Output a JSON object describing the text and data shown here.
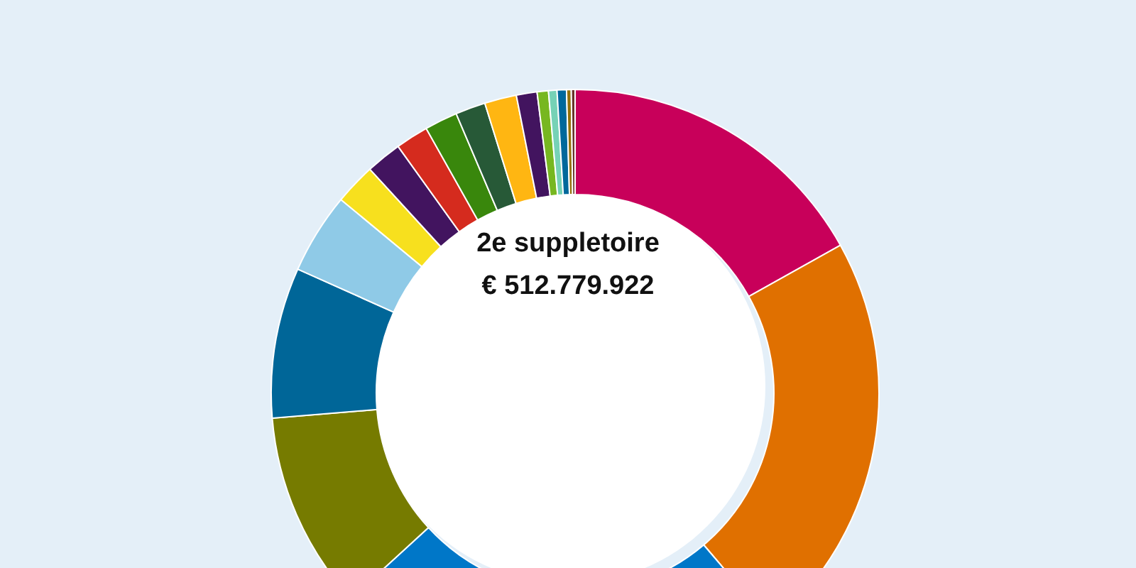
{
  "chart_data": {
    "type": "donut",
    "title": "2e suppletoire",
    "subtitle": "€ 512.779.922",
    "categories": [
      null,
      null,
      null,
      null,
      null,
      null,
      null,
      null,
      null,
      null,
      null,
      null,
      null,
      null,
      null,
      null,
      null,
      null
    ],
    "values": [
      16.9,
      21.9,
      24.4,
      10.5,
      8.0,
      4.3,
      2.2,
      1.9,
      1.75,
      1.75,
      1.6,
      1.7,
      1.1,
      0.6,
      0.45,
      0.5,
      0.25,
      0.2
    ],
    "colors": [
      "#c8005a",
      "#e07000",
      "#0077c8",
      "#767b00",
      "#006698",
      "#8fcae7",
      "#f7e01e",
      "#42145f",
      "#d52b1e",
      "#39870c",
      "#275937",
      "#ffb612",
      "#42145f",
      "#77b720",
      "#76d2b6",
      "#01689b",
      "#94710a",
      "#673327"
    ]
  }
}
